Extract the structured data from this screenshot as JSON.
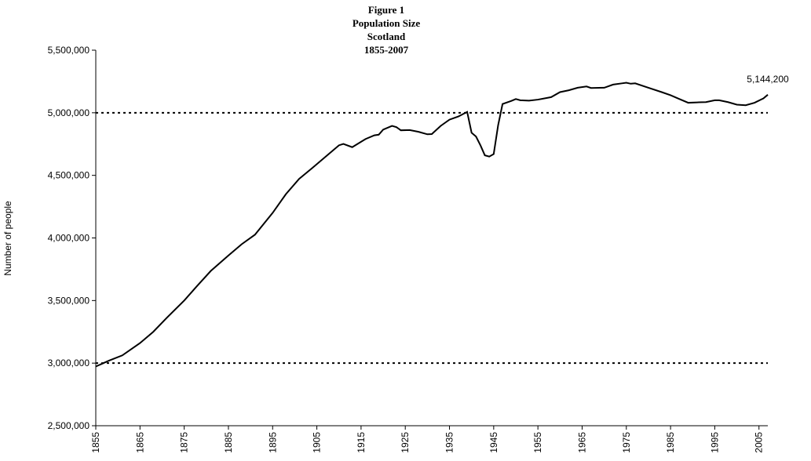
{
  "chart_data": {
    "type": "line",
    "title": [
      "Figure 1",
      "Population Size",
      "Scotland",
      "1855-2007"
    ],
    "y_label": "Number of people",
    "x": [
      1855,
      1858,
      1861,
      1865,
      1868,
      1871,
      1875,
      1878,
      1881,
      1885,
      1888,
      1891,
      1895,
      1898,
      1901,
      1904,
      1907,
      1910,
      1911,
      1913,
      1916,
      1918,
      1919,
      1920,
      1922,
      1923,
      1924,
      1926,
      1928,
      1930,
      1931,
      1933,
      1935,
      1937,
      1939,
      1940,
      1941,
      1942,
      1943,
      1944,
      1945,
      1946,
      1947,
      1949,
      1950,
      1951,
      1953,
      1955,
      1958,
      1960,
      1962,
      1964,
      1966,
      1967,
      1970,
      1972,
      1974,
      1975,
      1976,
      1977,
      1980,
      1983,
      1985,
      1987,
      1989,
      1991,
      1993,
      1995,
      1996,
      1998,
      2000,
      2002,
      2004,
      2006,
      2007
    ],
    "series": [
      {
        "name": "Population",
        "color": "#000000",
        "values": [
          2973000,
          3020000,
          3062000,
          3160000,
          3250000,
          3360000,
          3500000,
          3620000,
          3736000,
          3860000,
          3950000,
          4026000,
          4200000,
          4350000,
          4472000,
          4560000,
          4650000,
          4740000,
          4751000,
          4725000,
          4790000,
          4820000,
          4825000,
          4865000,
          4895000,
          4885000,
          4860000,
          4862000,
          4848000,
          4828000,
          4830000,
          4895000,
          4945000,
          4970000,
          5007000,
          4840000,
          4810000,
          4740000,
          4660000,
          4650000,
          4670000,
          4900000,
          5070000,
          5095000,
          5110000,
          5100000,
          5097000,
          5105000,
          5125000,
          5165000,
          5180000,
          5200000,
          5210000,
          5198000,
          5200000,
          5225000,
          5235000,
          5240000,
          5232000,
          5235000,
          5200000,
          5165000,
          5140000,
          5110000,
          5080000,
          5083000,
          5085000,
          5100000,
          5100000,
          5085000,
          5065000,
          5060000,
          5080000,
          5115000,
          5144200
        ],
        "value_labels": [
          null,
          null,
          null,
          null,
          null,
          null,
          null,
          null,
          null,
          null,
          null,
          null,
          null,
          null,
          null,
          null,
          null,
          null,
          null,
          null,
          null,
          null,
          null,
          null,
          null,
          null,
          null,
          null,
          null,
          null,
          null,
          null,
          null,
          null,
          null,
          null,
          null,
          null,
          null,
          null,
          null,
          null,
          null,
          null,
          null,
          null,
          null,
          null,
          null,
          null,
          null,
          null,
          null,
          null,
          null,
          null,
          null,
          null,
          null,
          null,
          null,
          null,
          null,
          null,
          null,
          null,
          null,
          null,
          null,
          null,
          null,
          null,
          null,
          null,
          "5,144,200"
        ]
      }
    ],
    "reference_lines": [
      5000000,
      3000000
    ],
    "xlim": [
      1855,
      2007
    ],
    "xticks": [
      1855,
      1865,
      1875,
      1885,
      1895,
      1905,
      1915,
      1925,
      1935,
      1945,
      1955,
      1965,
      1975,
      1985,
      1995,
      2005
    ],
    "ylim": [
      2500000,
      5500000
    ],
    "yticks": [
      {
        "value": 2500000,
        "label": "2,500,000"
      },
      {
        "value": 3000000,
        "label": "3,000,000"
      },
      {
        "value": 3500000,
        "label": "3,500,000"
      },
      {
        "value": 4000000,
        "label": "4,000,000"
      },
      {
        "value": 4500000,
        "label": "4,500,000"
      },
      {
        "value": 5000000,
        "label": "5,000,000"
      },
      {
        "value": 5500000,
        "label": "5,500,000"
      }
    ],
    "grid": false
  }
}
